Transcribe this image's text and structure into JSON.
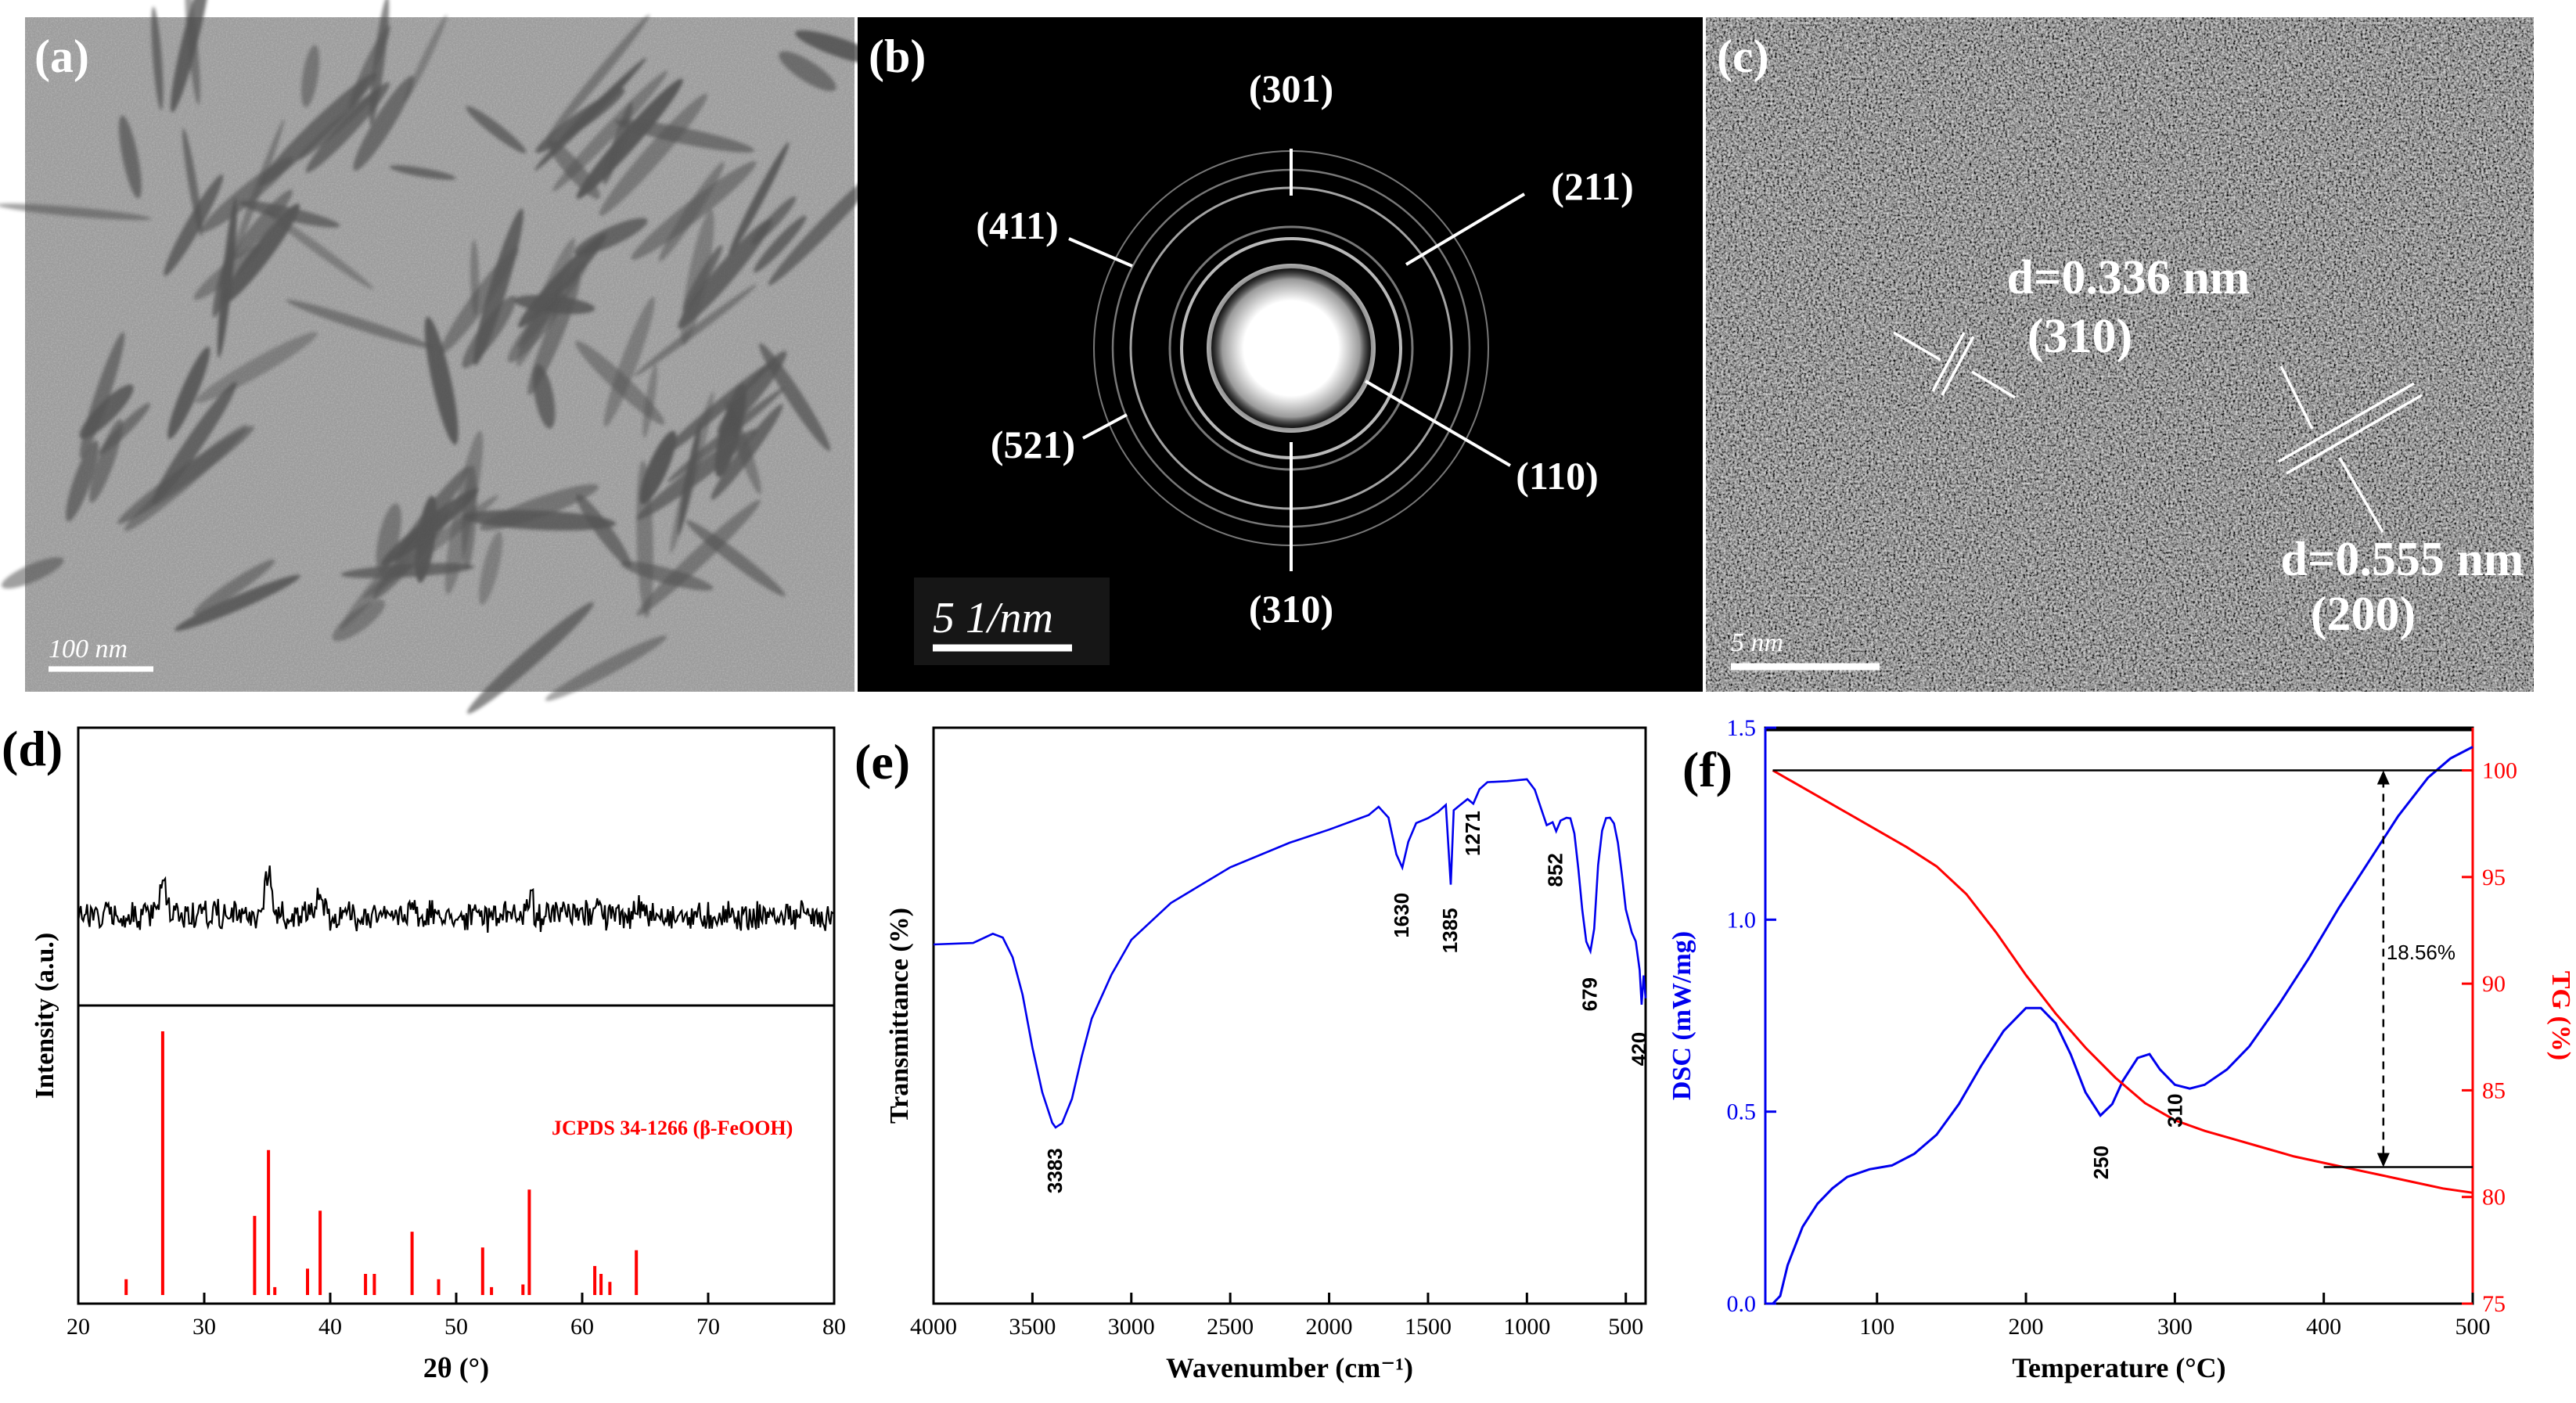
{
  "panel_a": {
    "label": "(a)",
    "scale": "100 nm"
  },
  "panel_b": {
    "label": "(b)",
    "scale": "5 1/nm",
    "rings": [
      "(301)",
      "(211)",
      "(411)",
      "(521)",
      "(110)",
      "(310)"
    ]
  },
  "panel_c": {
    "label": "(c)",
    "scale": "5 nm",
    "d1": "d=0.336 nm",
    "p1": "(310)",
    "d2": "d=0.555 nm",
    "p2": "(200)"
  },
  "chart_data": [
    {
      "panel": "(d)",
      "type": "line",
      "title": "",
      "xlabel": "2θ (°)",
      "ylabel": "Intensity (a.u.)",
      "xlim": [
        20,
        80
      ],
      "xticks": [
        "20",
        "30",
        "40",
        "50",
        "60",
        "70",
        "80"
      ],
      "measured_peaks": [
        26.7,
        35.1,
        39.2,
        46.5,
        55.8,
        61.0,
        64.3
      ],
      "reference": {
        "name": "JCPDS 34-1266 (β-FeOOH)",
        "color": "#ff0000",
        "positions": [
          23.8,
          26.7,
          34.0,
          35.1,
          35.6,
          38.2,
          39.2,
          42.8,
          43.5,
          46.5,
          48.6,
          52.1,
          52.8,
          55.3,
          55.8,
          61.0,
          61.5,
          62.2,
          64.3
        ],
        "intensities": [
          6,
          100,
          30,
          55,
          3,
          10,
          32,
          8,
          8,
          24,
          6,
          18,
          3,
          4,
          40,
          11,
          8,
          5,
          17
        ]
      }
    },
    {
      "panel": "(e)",
      "type": "line",
      "title": "",
      "xlabel": "Wavenumber (cm⁻¹)",
      "ylabel": "Transmittance (%)",
      "xlim": [
        4000,
        400
      ],
      "xticks": [
        "4000",
        "3500",
        "3000",
        "2500",
        "2000",
        "1500",
        "1000",
        "500"
      ],
      "series": [
        {
          "name": "FTIR",
          "color": "#0000ee",
          "x": [
            4000,
            3800,
            3700,
            3650,
            3600,
            3550,
            3500,
            3450,
            3400,
            3383,
            3350,
            3300,
            3250,
            3200,
            3100,
            3000,
            2800,
            2500,
            2200,
            2000,
            1800,
            1750,
            1700,
            1660,
            1630,
            1600,
            1560,
            1500,
            1450,
            1410,
            1385,
            1370,
            1340,
            1300,
            1271,
            1240,
            1200,
            1100,
            1000,
            960,
            930,
            900,
            870,
            852,
            830,
            800,
            780,
            760,
            740,
            720,
            700,
            679,
            660,
            640,
            620,
            600,
            580,
            560,
            540,
            520,
            500,
            470,
            450,
            430,
            420,
            410,
            400
          ],
          "y": [
            68,
            69,
            70.5,
            70,
            65,
            57,
            46,
            36,
            29.5,
            28.7,
            29.5,
            35,
            44,
            52,
            62,
            69,
            77,
            84.5,
            90,
            93.5,
            96.5,
            97.6,
            96,
            88,
            84.7,
            90,
            94.8,
            96,
            97,
            98,
            81.4,
            97,
            98.5,
            99.5,
            99,
            101.5,
            103,
            104,
            103.5,
            102,
            97.5,
            94,
            95,
            92.8,
            95,
            96,
            95.5,
            92,
            85,
            76,
            69,
            66.8,
            72,
            85,
            93,
            95.5,
            95.2,
            94,
            90,
            83,
            76,
            71,
            69,
            63,
            55,
            62,
            57
          ]
        }
      ],
      "annotations": [
        "3383",
        "1630",
        "1385",
        "1271",
        "852",
        "679",
        "420"
      ]
    },
    {
      "panel": "(f)",
      "type": "line",
      "title": "",
      "xlabel": "Temperature (°C)",
      "ylabel_left": "DSC (mW/mg)",
      "ylabel_right": "TG (%)",
      "xlim": [
        25,
        500
      ],
      "ylim_left": [
        0,
        1.5
      ],
      "ylim_right": [
        75,
        102
      ],
      "xticks": [
        "100",
        "200",
        "300",
        "400",
        "500"
      ],
      "yticks_left": [
        "0.0",
        "0.5",
        "1.0",
        "1.5"
      ],
      "yticks_right": [
        "75",
        "80",
        "85",
        "90",
        "95",
        "100"
      ],
      "series": [
        {
          "name": "DSC",
          "axis": "left",
          "color": "#0000ee",
          "x": [
            30,
            35,
            40,
            50,
            60,
            70,
            80,
            95,
            110,
            125,
            140,
            155,
            170,
            185,
            200,
            210,
            220,
            230,
            240,
            250,
            258,
            265,
            275,
            283,
            290,
            300,
            310,
            320,
            335,
            350,
            370,
            390,
            410,
            430,
            450,
            470,
            485,
            500
          ],
          "y": [
            0.0,
            0.02,
            0.1,
            0.2,
            0.26,
            0.3,
            0.33,
            0.35,
            0.36,
            0.39,
            0.44,
            0.52,
            0.62,
            0.71,
            0.77,
            0.77,
            0.73,
            0.65,
            0.55,
            0.49,
            0.52,
            0.58,
            0.64,
            0.65,
            0.61,
            0.57,
            0.56,
            0.57,
            0.61,
            0.67,
            0.78,
            0.9,
            1.03,
            1.15,
            1.27,
            1.37,
            1.42,
            1.45
          ]
        },
        {
          "name": "TG",
          "axis": "right",
          "color": "#ff0000",
          "x": [
            30,
            40,
            60,
            80,
            100,
            120,
            140,
            160,
            180,
            200,
            220,
            240,
            260,
            280,
            300,
            320,
            340,
            360,
            380,
            400,
            420,
            440,
            460,
            480,
            500
          ],
          "y": [
            100,
            99.6,
            98.8,
            98.0,
            97.2,
            96.4,
            95.5,
            94.2,
            92.4,
            90.4,
            88.6,
            87.0,
            85.6,
            84.4,
            83.6,
            83.1,
            82.7,
            82.3,
            81.9,
            81.6,
            81.3,
            81.0,
            80.7,
            80.4,
            80.2
          ]
        }
      ],
      "weight_loss_label": "18.56%",
      "peak_labels": [
        "250",
        "310"
      ]
    }
  ]
}
